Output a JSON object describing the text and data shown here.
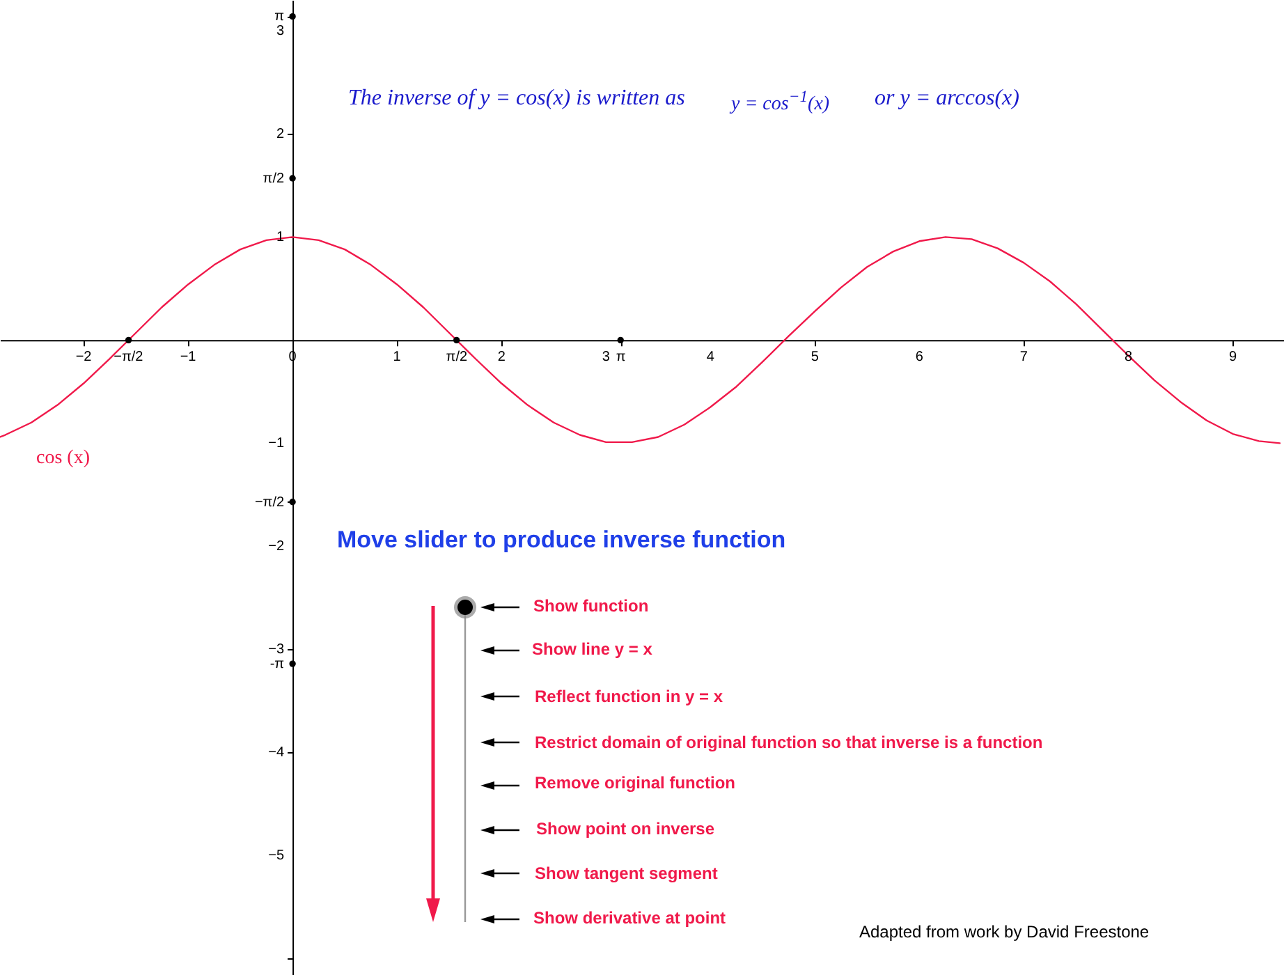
{
  "chart_data": {
    "type": "line",
    "x": [
      -2.8,
      -2.75,
      -2.5,
      -2.25,
      -2,
      -1.75,
      -1.5,
      -1.25,
      -1,
      -0.75,
      -0.5,
      -0.25,
      0,
      0.25,
      0.5,
      0.75,
      1,
      1.25,
      1.5,
      1.75,
      2,
      2.25,
      2.5,
      2.75,
      3,
      3.25,
      3.5,
      3.75,
      4,
      4.25,
      4.5,
      4.75,
      5,
      5.25,
      5.5,
      5.75,
      6,
      6.25,
      6.5,
      6.75,
      7,
      7.25,
      7.5,
      7.75,
      8,
      8.25,
      8.5,
      8.75,
      9,
      9.25,
      9.45
    ],
    "series": [
      {
        "name": "cos (x)",
        "color": "#f0194a",
        "values": [
          -0.94,
          -0.92,
          -0.8,
          -0.63,
          -0.42,
          -0.18,
          0.07,
          0.32,
          0.54,
          0.73,
          0.88,
          0.97,
          1,
          0.97,
          0.88,
          0.73,
          0.54,
          0.32,
          0.07,
          -0.18,
          -0.42,
          -0.63,
          -0.8,
          -0.92,
          -0.99,
          -0.99,
          -0.94,
          -0.82,
          -0.65,
          -0.45,
          -0.21,
          0.04,
          0.28,
          0.51,
          0.71,
          0.86,
          0.96,
          1.0,
          0.98,
          0.89,
          0.75,
          0.57,
          0.35,
          0.1,
          -0.15,
          -0.39,
          -0.6,
          -0.78,
          -0.91,
          -0.98,
          -1.0
        ]
      },
      {
        "type": "scatter",
        "color": "#000000",
        "x": [
          -1.57,
          1.57,
          3.14,
          0,
          0,
          0,
          0
        ],
        "values": [
          0,
          0,
          0,
          3.14,
          1.57,
          -1.57,
          -3.14
        ]
      }
    ],
    "xlim": [
      -2.8,
      9.49
    ],
    "ylim": [
      -6.16,
      3.3
    ],
    "xticks": [
      -2,
      {
        "value": -1.571,
        "label": "−π/2"
      },
      -1,
      0,
      1,
      {
        "value": 1.571,
        "label": "π/2"
      },
      2,
      3,
      {
        "value": 3.142,
        "label": "π"
      },
      4,
      5,
      6,
      7,
      8,
      9
    ],
    "yticks": [
      {
        "value": -6,
        "label": null
      },
      -5,
      -4,
      {
        "value": -3.142,
        "label": "-π"
      },
      -3,
      -2,
      {
        "value": -1.571,
        "label": "−π/2"
      },
      -1,
      1,
      {
        "value": 1.571,
        "label": "π/2"
      },
      2,
      3,
      {
        "value": 3.142,
        "label": "π"
      }
    ],
    "grid": false,
    "legend": false,
    "line_style": "solid",
    "annotations": [
      "The inverse of y = cos(x) is written as",
      "y = cos$^{−1}$(x)",
      "or y = arccos(x)",
      "Move slider to produce inverse function",
      "Show function",
      "Show line y = x",
      "Reflect function in y = x",
      "Restrict domain of original function so that inverse is a function",
      "Remove original function",
      "Show point on inverse",
      "Show tangent segment",
      "Show derivative at point",
      "Adapted from work by David Freestone"
    ]
  }
}
